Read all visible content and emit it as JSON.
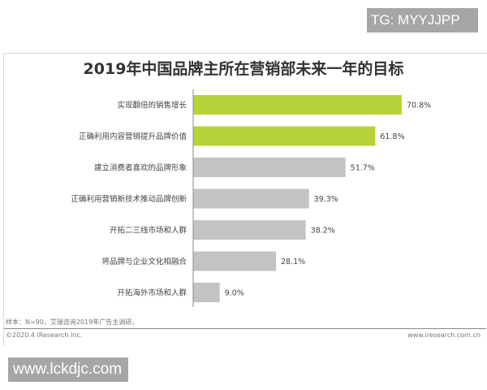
{
  "watermarks": {
    "top": "TG: MYYJJPP",
    "bottom": "www.lckdjc.com"
  },
  "chart_data": {
    "type": "bar",
    "orientation": "horizontal",
    "title": "2019年中国品牌主所在营销部未来一年的目标",
    "categories": [
      "实现翻倍的销售增长",
      "正确利用内容营销提升品牌价值",
      "建立消费者喜欢的品牌形象",
      "正确利用营销新技术推动品牌创新",
      "开拓二三线市场和人群",
      "将品牌与企业文化相融合",
      "开拓海外市场和人群"
    ],
    "values": [
      70.8,
      61.8,
      51.7,
      39.3,
      38.2,
      28.1,
      9.0
    ],
    "value_labels": [
      "70.8%",
      "61.8%",
      "51.7%",
      "39.3%",
      "38.2%",
      "28.1%",
      "9.0%"
    ],
    "highlight_color": "#b6d43a",
    "bar_color": "#c3c3c3",
    "xlim": [
      0,
      72
    ],
    "grid": false
  },
  "footer": {
    "note": "样本：N=90，艾瑞咨询2019年广告主调研。",
    "copyright": "©2020.4 iResearch Inc.",
    "url": "www.iresearch.com.cn"
  }
}
